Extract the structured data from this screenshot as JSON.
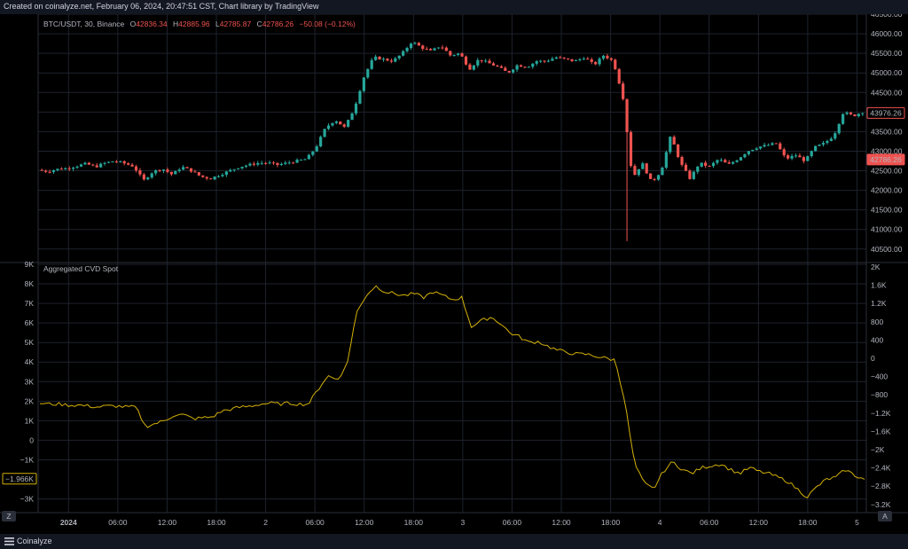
{
  "caption": "Created on coinalyze.net, February 06, 2024, 20:47:51 CST, Chart library by TradingView",
  "footer": {
    "brand": "Coinalyze",
    "left_corner_btn": "Z",
    "right_corner_btn": "A"
  },
  "colors": {
    "up": "#26a69a",
    "down": "#ef5350",
    "cvd": "#d4b106",
    "grid": "#1e222d",
    "text": "#b2b5be",
    "background": "#000000"
  },
  "chart_data": [
    {
      "type": "candlestick",
      "legend": {
        "symbol": "BTC/USDT, 30, Binance",
        "o_label": "O",
        "o": "42836.34",
        "h_label": "H",
        "h": "42885.96",
        "l_label": "L",
        "l": "42785.87",
        "c_label": "C",
        "c": "42786.26",
        "change": "−50.08 (−0.12%)"
      },
      "ylim": [
        40200,
        46500
      ],
      "y_ticks": [
        "46500.00",
        "46000.00",
        "45500.00",
        "45000.00",
        "44500.00",
        "44000.00",
        "43500.00",
        "43000.00",
        "42500.00",
        "42000.00",
        "41500.00",
        "41000.00",
        "40500.00"
      ],
      "last_price_label": "42786.26",
      "marker_price_label": "43976.26",
      "price_path": [
        [
          0,
          42520
        ],
        [
          1,
          42480
        ],
        [
          2,
          42540
        ],
        [
          3,
          42560
        ],
        [
          4,
          42620
        ],
        [
          5,
          42680
        ],
        [
          6,
          42600
        ],
        [
          7,
          42700
        ],
        [
          8,
          42750
        ],
        [
          9,
          42690
        ],
        [
          10,
          42610
        ],
        [
          11,
          42250
        ],
        [
          12,
          42480
        ],
        [
          13,
          42550
        ],
        [
          14,
          42400
        ],
        [
          15,
          42600
        ],
        [
          16,
          42500
        ],
        [
          17,
          42350
        ],
        [
          18,
          42300
        ],
        [
          19,
          42400
        ],
        [
          20,
          42500
        ],
        [
          21,
          42600
        ],
        [
          22,
          42650
        ],
        [
          23,
          42700
        ],
        [
          24,
          42700
        ],
        [
          25,
          42650
        ],
        [
          26,
          42700
        ],
        [
          27,
          42750
        ],
        [
          28,
          42800
        ],
        [
          29,
          43100
        ],
        [
          30,
          43600
        ],
        [
          31,
          43800
        ],
        [
          32,
          43600
        ],
        [
          33,
          44100
        ],
        [
          34,
          44900
        ],
        [
          35,
          45400
        ],
        [
          36,
          45350
        ],
        [
          37,
          45300
        ],
        [
          38,
          45500
        ],
        [
          39,
          45800
        ],
        [
          40,
          45650
        ],
        [
          41,
          45550
        ],
        [
          42,
          45700
        ],
        [
          43,
          45450
        ],
        [
          44,
          45500
        ],
        [
          45,
          45100
        ],
        [
          46,
          45350
        ],
        [
          47,
          45250
        ],
        [
          48,
          45150
        ],
        [
          49,
          45000
        ],
        [
          50,
          45200
        ],
        [
          51,
          45150
        ],
        [
          52,
          45300
        ],
        [
          53,
          45300
        ],
        [
          54,
          45400
        ],
        [
          55,
          45350
        ],
        [
          56,
          45300
        ],
        [
          57,
          45400
        ],
        [
          58,
          45200
        ],
        [
          59,
          45450
        ],
        [
          60,
          45300
        ],
        [
          61,
          44400
        ],
        [
          62,
          42300
        ],
        [
          63,
          42700
        ],
        [
          64,
          42200
        ],
        [
          65,
          42500
        ],
        [
          66,
          43400
        ],
        [
          67,
          42700
        ],
        [
          68,
          42300
        ],
        [
          69,
          42700
        ],
        [
          70,
          42600
        ],
        [
          71,
          42800
        ],
        [
          72,
          42650
        ],
        [
          73,
          42800
        ],
        [
          74,
          43000
        ],
        [
          75,
          43100
        ],
        [
          76,
          43150
        ],
        [
          77,
          43200
        ],
        [
          78,
          42800
        ],
        [
          79,
          42900
        ],
        [
          80,
          42750
        ],
        [
          81,
          43100
        ],
        [
          82,
          43200
        ],
        [
          83,
          43400
        ],
        [
          84,
          44000
        ],
        [
          85,
          43900
        ],
        [
          86,
          44000
        ]
      ]
    },
    {
      "type": "line",
      "title": "Aggregated CVD Spot",
      "ylim": [
        -3700,
        9000
      ],
      "y_ticks": [
        "9K",
        "8K",
        "7K",
        "6K",
        "5K",
        "4K",
        "3K",
        "2K",
        "1K",
        "0",
        "−1K",
        "−3K"
      ],
      "right_y_ticks": [
        "2K",
        "1.6K",
        "1.2K",
        "800",
        "400",
        "0",
        "−400",
        "−800",
        "−1.2K",
        "−1.6K",
        "−2K",
        "−2.4K",
        "−2.8K",
        "−3.2K"
      ],
      "last_value_label": "−1.966K",
      "series": [
        {
          "values": [
            [
              0,
              1900
            ],
            [
              1,
              1850
            ],
            [
              2,
              1850
            ],
            [
              3,
              1800
            ],
            [
              4,
              1800
            ],
            [
              5,
              1750
            ],
            [
              6,
              1700
            ],
            [
              7,
              1750
            ],
            [
              8,
              1750
            ],
            [
              9,
              1700
            ],
            [
              10,
              1700
            ],
            [
              11,
              700
            ],
            [
              12,
              850
            ],
            [
              13,
              1000
            ],
            [
              14,
              1300
            ],
            [
              15,
              1300
            ],
            [
              16,
              1100
            ],
            [
              17,
              1150
            ],
            [
              18,
              1200
            ],
            [
              19,
              1500
            ],
            [
              20,
              1600
            ],
            [
              21,
              1700
            ],
            [
              22,
              1750
            ],
            [
              23,
              1850
            ],
            [
              24,
              1900
            ],
            [
              25,
              1850
            ],
            [
              26,
              1900
            ],
            [
              27,
              1850
            ],
            [
              28,
              1850
            ],
            [
              29,
              2600
            ],
            [
              30,
              3300
            ],
            [
              31,
              3100
            ],
            [
              32,
              3800
            ],
            [
              33,
              6500
            ],
            [
              34,
              7400
            ],
            [
              35,
              7900
            ],
            [
              36,
              7600
            ],
            [
              37,
              7500
            ],
            [
              38,
              7400
            ],
            [
              39,
              7500
            ],
            [
              40,
              7300
            ],
            [
              41,
              7600
            ],
            [
              42,
              7400
            ],
            [
              43,
              7200
            ],
            [
              44,
              7300
            ],
            [
              45,
              5800
            ],
            [
              46,
              6100
            ],
            [
              47,
              6300
            ],
            [
              48,
              6000
            ],
            [
              49,
              5500
            ],
            [
              50,
              5300
            ],
            [
              51,
              5000
            ],
            [
              52,
              5050
            ],
            [
              53,
              4800
            ],
            [
              54,
              4600
            ],
            [
              55,
              4500
            ],
            [
              56,
              4400
            ],
            [
              57,
              4400
            ],
            [
              58,
              4300
            ],
            [
              59,
              4200
            ],
            [
              60,
              4100
            ],
            [
              61,
              2000
            ],
            [
              62,
              -1200
            ],
            [
              63,
              -2200
            ],
            [
              64,
              -2500
            ],
            [
              65,
              -1600
            ],
            [
              66,
              -1100
            ],
            [
              67,
              -1500
            ],
            [
              68,
              -1700
            ],
            [
              69,
              -1400
            ],
            [
              70,
              -1300
            ],
            [
              71,
              -1200
            ],
            [
              72,
              -1500
            ],
            [
              73,
              -1700
            ],
            [
              74,
              -1400
            ],
            [
              75,
              -1600
            ],
            [
              76,
              -1700
            ],
            [
              77,
              -1900
            ],
            [
              78,
              -2100
            ],
            [
              79,
              -2500
            ],
            [
              80,
              -2900
            ],
            [
              81,
              -2400
            ],
            [
              82,
              -2000
            ],
            [
              83,
              -1900
            ],
            [
              84,
              -1500
            ],
            [
              85,
              -1800
            ],
            [
              86,
              -2000
            ]
          ]
        }
      ]
    }
  ],
  "x_axis": {
    "ticks": [
      {
        "pos": 1.5,
        "label": "2024",
        "bold": true
      },
      {
        "pos": 4.6,
        "label": "06:00"
      },
      {
        "pos": 7.7,
        "label": "12:00"
      },
      {
        "pos": 10.8,
        "label": "18:00"
      },
      {
        "pos": 13.9,
        "label": "2"
      },
      {
        "pos": 17.0,
        "label": "06:00"
      },
      {
        "pos": 20.1,
        "label": "12:00"
      },
      {
        "pos": 23.2,
        "label": "18:00"
      },
      {
        "pos": 26.3,
        "label": "3"
      },
      {
        "pos": 29.4,
        "label": "06:00"
      },
      {
        "pos": 32.5,
        "label": "12:00"
      },
      {
        "pos": 35.6,
        "label": "18:00"
      },
      {
        "pos": 38.7,
        "label": "4"
      },
      {
        "pos": 41.8,
        "label": "06:00"
      },
      {
        "pos": 44.9,
        "label": "12:00"
      },
      {
        "pos": 48.0,
        "label": "18:00"
      },
      {
        "pos": 51.1,
        "label": "5"
      }
    ]
  }
}
